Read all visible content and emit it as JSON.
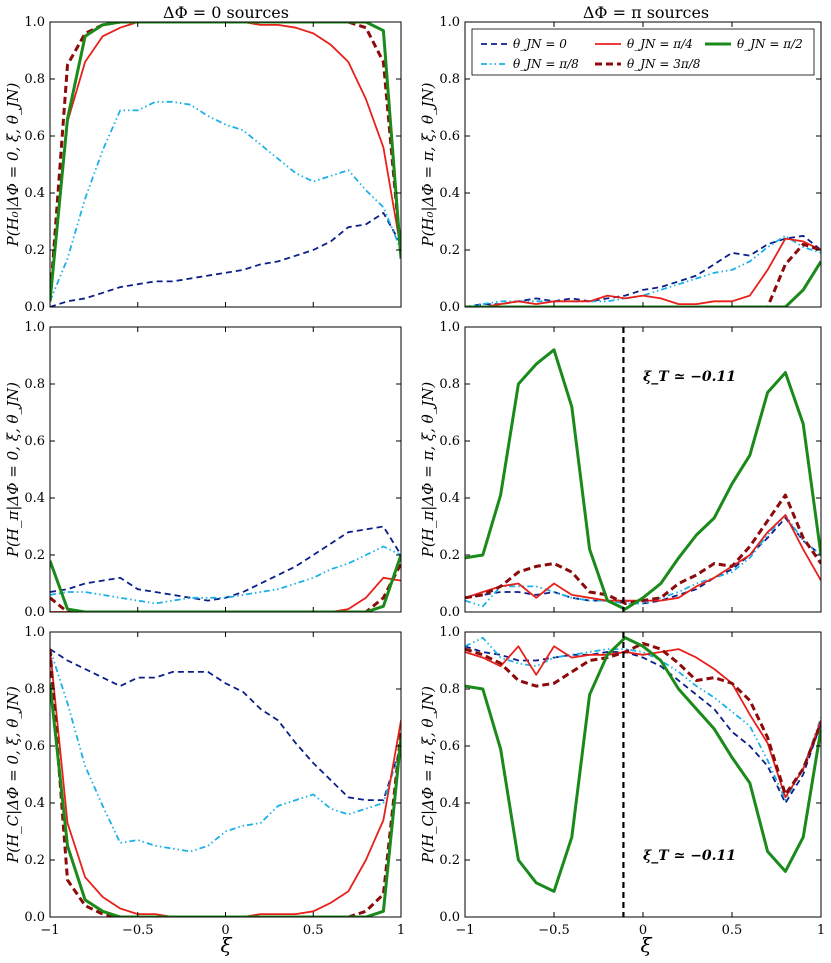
{
  "figure": {
    "col_titles": [
      "ΔΦ = 0 sources",
      "ΔΦ = π sources"
    ],
    "xlabel": "ξ",
    "xticks": [
      -1,
      -0.5,
      0,
      0.5,
      1
    ],
    "xtick_labels": [
      "−1",
      "−0.5",
      "0",
      "0.5",
      "1"
    ],
    "yticks": [
      0,
      0.2,
      0.4,
      0.6,
      0.8,
      1.0
    ],
    "ytick_labels": [
      "0.0",
      "0.2",
      "0.4",
      "0.6",
      "0.8",
      "1.0"
    ],
    "ylabels": {
      "h0_left": "P(H₀|ΔΦ = 0, ξ, θ_JN)",
      "h0_right": "P(H₀|ΔΦ = π, ξ, θ_JN)",
      "hpi_left": "P(H_π|ΔΦ = 0, ξ, θ_JN)",
      "hpi_right": "P(H_π|ΔΦ = π, ξ, θ_JN)",
      "hc_left": "P(H_C|ΔΦ = 0, ξ, θ_JN)",
      "hc_right": "P(H_C|ΔΦ = π, ξ, θ_JN)"
    },
    "annotation_text": "ξ_T ≃ −0.11",
    "xi_T": -0.11
  },
  "legend": [
    {
      "label": "θ_JN = 0",
      "color": "#0b1f8a",
      "style": "dashed"
    },
    {
      "label": "θ_JN = π/8",
      "color": "#1ab0e8",
      "style": "dashdot"
    },
    {
      "label": "θ_JN = π/4",
      "color": "#e8201a",
      "style": "solid"
    },
    {
      "label": "θ_JN = 3π/8",
      "color": "#8b0a0a",
      "style": "dashed-thick"
    },
    {
      "label": "θ_JN = π/2",
      "color": "#1a8a1a",
      "style": "solid-thick"
    }
  ],
  "chart_data": [
    {
      "type": "line",
      "panel": "h0-left",
      "title": "ΔΦ = 0 sources",
      "xlim": [
        -1,
        1
      ],
      "ylim": [
        0,
        1
      ],
      "x": [
        -1,
        -0.9,
        -0.8,
        -0.7,
        -0.6,
        -0.5,
        -0.4,
        -0.3,
        -0.2,
        -0.1,
        0,
        0.1,
        0.2,
        0.3,
        0.4,
        0.5,
        0.6,
        0.7,
        0.8,
        0.9,
        1
      ],
      "series": [
        {
          "name": "θ_JN = 0",
          "values": [
            0.0,
            0.02,
            0.03,
            0.05,
            0.07,
            0.08,
            0.09,
            0.09,
            0.1,
            0.11,
            0.12,
            0.13,
            0.15,
            0.16,
            0.18,
            0.2,
            0.23,
            0.28,
            0.29,
            0.33,
            0.22
          ]
        },
        {
          "name": "θ_JN = π/8",
          "values": [
            0.02,
            0.17,
            0.38,
            0.55,
            0.69,
            0.69,
            0.72,
            0.72,
            0.71,
            0.67,
            0.64,
            0.62,
            0.57,
            0.52,
            0.47,
            0.44,
            0.46,
            0.48,
            0.41,
            0.35,
            0.2
          ]
        },
        {
          "name": "θ_JN = π/4",
          "values": [
            0.02,
            0.65,
            0.86,
            0.95,
            0.98,
            1.0,
            1.0,
            1.0,
            1.0,
            1.0,
            1.0,
            1.0,
            0.99,
            0.99,
            0.98,
            0.96,
            0.92,
            0.86,
            0.73,
            0.56,
            0.2
          ]
        },
        {
          "name": "θ_JN = 3π/8",
          "values": [
            0.02,
            0.85,
            0.96,
            0.99,
            1.0,
            1.0,
            1.0,
            1.0,
            1.0,
            1.0,
            1.0,
            1.0,
            1.0,
            1.0,
            1.0,
            1.0,
            1.0,
            1.0,
            0.98,
            0.86,
            0.18
          ]
        },
        {
          "name": "θ_JN = π/2",
          "values": [
            0.02,
            0.66,
            0.95,
            0.99,
            1.0,
            1.0,
            1.0,
            1.0,
            1.0,
            1.0,
            1.0,
            1.0,
            1.0,
            1.0,
            1.0,
            1.0,
            1.0,
            1.0,
            1.0,
            0.97,
            0.17
          ]
        }
      ]
    },
    {
      "type": "line",
      "panel": "h0-right",
      "title": "ΔΦ = π sources",
      "xlim": [
        -1,
        1
      ],
      "ylim": [
        0,
        1
      ],
      "x": [
        -1,
        -0.9,
        -0.8,
        -0.7,
        -0.6,
        -0.5,
        -0.4,
        -0.3,
        -0.2,
        -0.1,
        0,
        0.1,
        0.2,
        0.3,
        0.4,
        0.5,
        0.6,
        0.7,
        0.8,
        0.9,
        1
      ],
      "series": [
        {
          "name": "θ_JN = 0",
          "values": [
            0.0,
            0.01,
            0.01,
            0.02,
            0.03,
            0.02,
            0.03,
            0.02,
            0.03,
            0.04,
            0.06,
            0.07,
            0.09,
            0.11,
            0.15,
            0.19,
            0.18,
            0.22,
            0.24,
            0.25,
            0.2
          ]
        },
        {
          "name": "θ_JN = π/8",
          "values": [
            0.0,
            0.01,
            0.02,
            0.02,
            0.02,
            0.02,
            0.02,
            0.02,
            0.02,
            0.03,
            0.04,
            0.06,
            0.08,
            0.1,
            0.12,
            0.13,
            0.16,
            0.21,
            0.25,
            0.21,
            0.19
          ]
        },
        {
          "name": "θ_JN = π/4",
          "values": [
            0.0,
            0.0,
            0.01,
            0.02,
            0.01,
            0.02,
            0.02,
            0.02,
            0.04,
            0.03,
            0.04,
            0.03,
            0.01,
            0.01,
            0.02,
            0.02,
            0.04,
            0.13,
            0.24,
            0.23,
            0.2
          ]
        },
        {
          "name": "θ_JN = 3π/8",
          "values": [
            0.0,
            0.0,
            0.0,
            0.0,
            0.0,
            0.0,
            0.0,
            0.0,
            0.0,
            0.0,
            0.0,
            0.0,
            0.0,
            0.0,
            0.0,
            0.0,
            0.0,
            0.0,
            0.15,
            0.22,
            0.2
          ]
        },
        {
          "name": "θ_JN = π/2",
          "values": [
            0.0,
            0.0,
            0.0,
            0.0,
            0.0,
            0.0,
            0.0,
            0.0,
            0.0,
            0.0,
            0.0,
            0.0,
            0.0,
            0.0,
            0.0,
            0.0,
            0.0,
            0.0,
            0.0,
            0.06,
            0.16
          ]
        }
      ]
    },
    {
      "type": "line",
      "panel": "hpi-left",
      "xlim": [
        -1,
        1
      ],
      "ylim": [
        0,
        1
      ],
      "x": [
        -1,
        -0.9,
        -0.8,
        -0.7,
        -0.6,
        -0.5,
        -0.4,
        -0.3,
        -0.2,
        -0.1,
        0,
        0.1,
        0.2,
        0.3,
        0.4,
        0.5,
        0.6,
        0.7,
        0.8,
        0.9,
        1
      ],
      "series": [
        {
          "name": "θ_JN = 0",
          "values": [
            0.07,
            0.08,
            0.1,
            0.11,
            0.12,
            0.08,
            0.07,
            0.06,
            0.05,
            0.04,
            0.05,
            0.07,
            0.1,
            0.13,
            0.16,
            0.2,
            0.24,
            0.28,
            0.29,
            0.3,
            0.2
          ]
        },
        {
          "name": "θ_JN = π/8",
          "values": [
            0.06,
            0.07,
            0.07,
            0.06,
            0.05,
            0.04,
            0.03,
            0.04,
            0.05,
            0.05,
            0.05,
            0.06,
            0.07,
            0.08,
            0.1,
            0.12,
            0.15,
            0.17,
            0.2,
            0.23,
            0.2
          ]
        },
        {
          "name": "θ_JN = π/4",
          "values": [
            0.0,
            0.0,
            0.0,
            0.0,
            0.0,
            0.0,
            0.0,
            0.0,
            0.0,
            0.0,
            0.0,
            0.0,
            0.0,
            0.0,
            0.0,
            0.0,
            0.0,
            0.01,
            0.05,
            0.12,
            0.11
          ]
        },
        {
          "name": "θ_JN = 3π/8",
          "values": [
            0.05,
            0.0,
            0.0,
            0.0,
            0.0,
            0.0,
            0.0,
            0.0,
            0.0,
            0.0,
            0.0,
            0.0,
            0.0,
            0.0,
            0.0,
            0.0,
            0.0,
            0.0,
            0.0,
            0.05,
            0.17
          ]
        },
        {
          "name": "θ_JN = π/2",
          "values": [
            0.18,
            0.01,
            0.0,
            0.0,
            0.0,
            0.0,
            0.0,
            0.0,
            0.0,
            0.0,
            0.0,
            0.0,
            0.0,
            0.0,
            0.0,
            0.0,
            0.0,
            0.0,
            0.0,
            0.02,
            0.2
          ]
        }
      ]
    },
    {
      "type": "line",
      "panel": "hpi-right",
      "xlim": [
        -1,
        1
      ],
      "ylim": [
        0,
        1
      ],
      "x": [
        -1,
        -0.9,
        -0.8,
        -0.7,
        -0.6,
        -0.5,
        -0.4,
        -0.3,
        -0.2,
        -0.1,
        0,
        0.1,
        0.2,
        0.3,
        0.4,
        0.5,
        0.6,
        0.7,
        0.8,
        0.9,
        1
      ],
      "series": [
        {
          "name": "θ_JN = 0",
          "values": [
            0.05,
            0.06,
            0.07,
            0.07,
            0.06,
            0.07,
            0.05,
            0.04,
            0.04,
            0.04,
            0.03,
            0.04,
            0.06,
            0.08,
            0.12,
            0.15,
            0.2,
            0.26,
            0.33,
            0.25,
            0.2
          ]
        },
        {
          "name": "θ_JN = π/8",
          "values": [
            0.04,
            0.02,
            0.09,
            0.09,
            0.09,
            0.07,
            0.05,
            0.04,
            0.04,
            0.03,
            0.03,
            0.05,
            0.07,
            0.1,
            0.12,
            0.14,
            0.19,
            0.27,
            0.34,
            0.25,
            0.2
          ]
        },
        {
          "name": "θ_JN = π/4",
          "values": [
            0.05,
            0.07,
            0.09,
            0.1,
            0.05,
            0.1,
            0.06,
            0.05,
            0.04,
            0.04,
            0.04,
            0.04,
            0.05,
            0.09,
            0.12,
            0.16,
            0.2,
            0.28,
            0.34,
            0.22,
            0.11
          ]
        },
        {
          "name": "θ_JN = 3π/8",
          "values": [
            0.05,
            0.06,
            0.09,
            0.14,
            0.16,
            0.17,
            0.14,
            0.07,
            0.06,
            0.03,
            0.04,
            0.05,
            0.1,
            0.13,
            0.17,
            0.16,
            0.23,
            0.32,
            0.41,
            0.26,
            0.17
          ]
        },
        {
          "name": "θ_JN = π/2",
          "values": [
            0.19,
            0.2,
            0.41,
            0.8,
            0.87,
            0.92,
            0.72,
            0.22,
            0.04,
            0.01,
            0.05,
            0.1,
            0.19,
            0.27,
            0.33,
            0.45,
            0.55,
            0.77,
            0.84,
            0.66,
            0.2
          ]
        }
      ]
    },
    {
      "type": "line",
      "panel": "hc-left",
      "xlim": [
        -1,
        1
      ],
      "ylim": [
        0,
        1
      ],
      "x": [
        -1,
        -0.9,
        -0.8,
        -0.7,
        -0.6,
        -0.5,
        -0.4,
        -0.3,
        -0.2,
        -0.1,
        0,
        0.1,
        0.2,
        0.3,
        0.4,
        0.5,
        0.6,
        0.7,
        0.8,
        0.9,
        1
      ],
      "series": [
        {
          "name": "θ_JN = 0",
          "values": [
            0.94,
            0.9,
            0.87,
            0.84,
            0.81,
            0.84,
            0.84,
            0.86,
            0.86,
            0.86,
            0.82,
            0.79,
            0.73,
            0.69,
            0.61,
            0.54,
            0.48,
            0.42,
            0.41,
            0.41,
            0.6
          ]
        },
        {
          "name": "θ_JN = π/8",
          "values": [
            0.94,
            0.75,
            0.53,
            0.39,
            0.26,
            0.27,
            0.25,
            0.24,
            0.23,
            0.25,
            0.3,
            0.32,
            0.33,
            0.39,
            0.41,
            0.43,
            0.38,
            0.36,
            0.38,
            0.4,
            0.6
          ]
        },
        {
          "name": "θ_JN = π/4",
          "values": [
            0.94,
            0.33,
            0.14,
            0.07,
            0.03,
            0.01,
            0.01,
            0.0,
            0.0,
            0.0,
            0.0,
            0.0,
            0.01,
            0.01,
            0.01,
            0.02,
            0.05,
            0.09,
            0.2,
            0.34,
            0.69
          ]
        },
        {
          "name": "θ_JN = 3π/8",
          "values": [
            0.94,
            0.13,
            0.04,
            0.01,
            0.0,
            0.0,
            0.0,
            0.0,
            0.0,
            0.0,
            0.0,
            0.0,
            0.0,
            0.0,
            0.0,
            0.0,
            0.0,
            0.0,
            0.02,
            0.08,
            0.65
          ]
        },
        {
          "name": "θ_JN = π/2",
          "values": [
            0.82,
            0.25,
            0.06,
            0.02,
            0.0,
            0.0,
            0.0,
            0.0,
            0.0,
            0.0,
            0.0,
            0.0,
            0.0,
            0.0,
            0.0,
            0.0,
            0.0,
            0.0,
            0.0,
            0.02,
            0.63
          ]
        }
      ]
    },
    {
      "type": "line",
      "panel": "hc-right",
      "xlim": [
        -1,
        1
      ],
      "ylim": [
        0,
        1
      ],
      "x": [
        -1,
        -0.9,
        -0.8,
        -0.7,
        -0.6,
        -0.5,
        -0.4,
        -0.3,
        -0.2,
        -0.1,
        0,
        0.1,
        0.2,
        0.3,
        0.4,
        0.5,
        0.6,
        0.7,
        0.8,
        0.9,
        1
      ],
      "series": [
        {
          "name": "θ_JN = 0",
          "values": [
            0.95,
            0.93,
            0.92,
            0.9,
            0.9,
            0.91,
            0.92,
            0.92,
            0.93,
            0.93,
            0.91,
            0.88,
            0.83,
            0.78,
            0.73,
            0.65,
            0.6,
            0.53,
            0.4,
            0.5,
            0.68
          ]
        },
        {
          "name": "θ_JN = π/8",
          "values": [
            0.95,
            0.98,
            0.91,
            0.89,
            0.88,
            0.91,
            0.92,
            0.93,
            0.94,
            0.94,
            0.93,
            0.9,
            0.86,
            0.81,
            0.77,
            0.72,
            0.67,
            0.55,
            0.41,
            0.52,
            0.7
          ]
        },
        {
          "name": "θ_JN = π/4",
          "values": [
            0.93,
            0.91,
            0.88,
            0.95,
            0.85,
            0.95,
            0.91,
            0.92,
            0.92,
            0.93,
            0.92,
            0.93,
            0.94,
            0.91,
            0.87,
            0.82,
            0.71,
            0.61,
            0.42,
            0.52,
            0.69
          ]
        },
        {
          "name": "θ_JN = 3π/8",
          "values": [
            0.94,
            0.92,
            0.89,
            0.83,
            0.81,
            0.82,
            0.86,
            0.9,
            0.91,
            0.93,
            0.96,
            0.94,
            0.89,
            0.83,
            0.84,
            0.82,
            0.76,
            0.63,
            0.43,
            0.52,
            0.68
          ]
        },
        {
          "name": "θ_JN = π/2",
          "values": [
            0.81,
            0.8,
            0.59,
            0.2,
            0.12,
            0.09,
            0.28,
            0.78,
            0.92,
            0.98,
            0.95,
            0.9,
            0.8,
            0.73,
            0.66,
            0.56,
            0.47,
            0.23,
            0.16,
            0.28,
            0.66
          ]
        }
      ]
    }
  ]
}
